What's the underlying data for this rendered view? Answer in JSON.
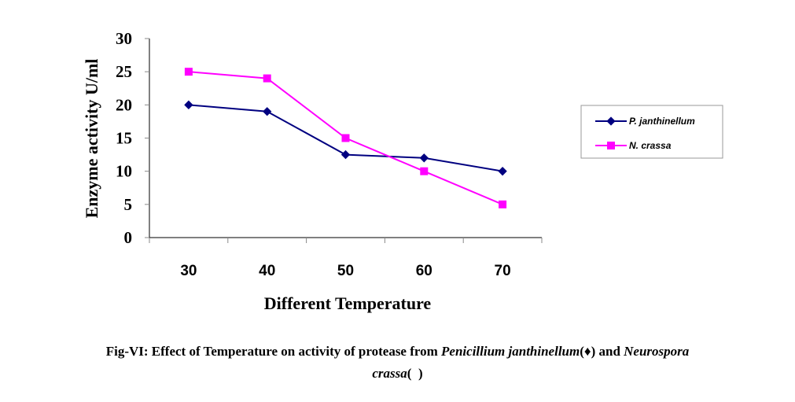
{
  "chart_data": {
    "type": "line",
    "title": "",
    "xlabel": "Different Temperature",
    "ylabel": "Enzyme activity U/ml",
    "categories": [
      "30",
      "40",
      "50",
      "60",
      "70"
    ],
    "ylim": [
      0,
      30
    ],
    "yticks": [
      "0",
      "5",
      "10",
      "15",
      "20",
      "25",
      "30"
    ],
    "grid": false,
    "legend_position": "right",
    "series": [
      {
        "name": "P. janthinellum",
        "marker": "diamond",
        "color": "#000080",
        "values": [
          20,
          19,
          12.5,
          12,
          10
        ]
      },
      {
        "name": "N. crassa",
        "marker": "square",
        "color": "#FF00FF",
        "values": [
          25,
          24,
          15,
          10,
          5
        ]
      }
    ]
  },
  "caption": {
    "prefix": "Fig-VI: Effect of Temperature on activity of protease from ",
    "species1": "Penicillium janthinellum",
    "marker1": "(♦)",
    "middle": " and ",
    "species2_part1": "Neurospora",
    "species2_part2": "crassa",
    "marker2": "(  )"
  }
}
